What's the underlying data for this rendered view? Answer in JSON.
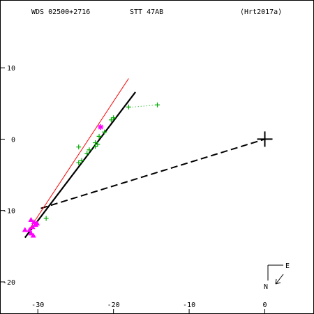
{
  "header": {
    "wds": "WDS 02500+2716",
    "pair": "STT  47AB",
    "ref": "(Hrt2017a)"
  },
  "compass": {
    "east": "E",
    "north": "N"
  },
  "colors": {
    "axis": "#000000",
    "fit_orbit": "#000000",
    "ref_orbit": "#ff0000",
    "visual_obs": "#00aa00",
    "speckle_obs": "#ff00ff",
    "dotted_link": "#00aa00"
  },
  "chart_data": {
    "type": "scatter",
    "title": "",
    "xlabel": "",
    "ylabel": "",
    "xlim": [
      -35,
      6.5
    ],
    "ylim": [
      -24.5,
      19.5
    ],
    "x_ticks": [
      -30,
      -20,
      -10,
      0
    ],
    "x_tick_labels": [
      "-30",
      "-20",
      "-10",
      "0"
    ],
    "y_ticks": [
      10,
      0,
      -10,
      -20
    ],
    "y_tick_labels": [
      "10",
      "0",
      "-10",
      "-20"
    ],
    "grid": false,
    "primary_star": [
      0,
      0
    ],
    "fitted_orbit": [
      [
        -31.7,
        -13.8
      ],
      [
        -17.1,
        6.6
      ]
    ],
    "reference_orbit": [
      [
        -31.3,
        -12.9
      ],
      [
        -18.0,
        8.5
      ]
    ],
    "dashed_line": [
      [
        -29.6,
        -9.7
      ],
      [
        0,
        0
      ]
    ],
    "dotted_line": [
      [
        -17.5,
        4.5
      ],
      [
        -14.2,
        4.8
      ]
    ],
    "visual_observations": [
      [
        -24.6,
        -3.3
      ],
      [
        -24.2,
        -3.0
      ],
      [
        -23.5,
        -2.0
      ],
      [
        -23.2,
        -1.5
      ],
      [
        -22.4,
        -1.0
      ],
      [
        -22.1,
        -0.7
      ],
      [
        -22.4,
        -0.5
      ],
      [
        -21.9,
        0.4
      ],
      [
        -21.2,
        1.0
      ],
      [
        -20.3,
        2.7
      ],
      [
        -20.0,
        3.0
      ],
      [
        -18.0,
        4.5
      ],
      [
        -14.2,
        4.8
      ],
      [
        -24.6,
        -1.1
      ],
      [
        -28.9,
        -11.1
      ]
    ],
    "speckle_observations": [
      [
        -30.5,
        -11.6
      ],
      [
        -30.1,
        -11.8
      ],
      [
        -30.3,
        -12.0
      ],
      [
        -30.7,
        -12.3
      ],
      [
        -31.1,
        -12.7
      ],
      [
        -31.7,
        -12.7
      ],
      [
        -30.9,
        -13.2
      ],
      [
        -30.6,
        -13.5
      ],
      [
        -30.9,
        -11.3
      ]
    ],
    "marked_speckle": [
      [
        -21.7,
        1.7
      ]
    ]
  }
}
